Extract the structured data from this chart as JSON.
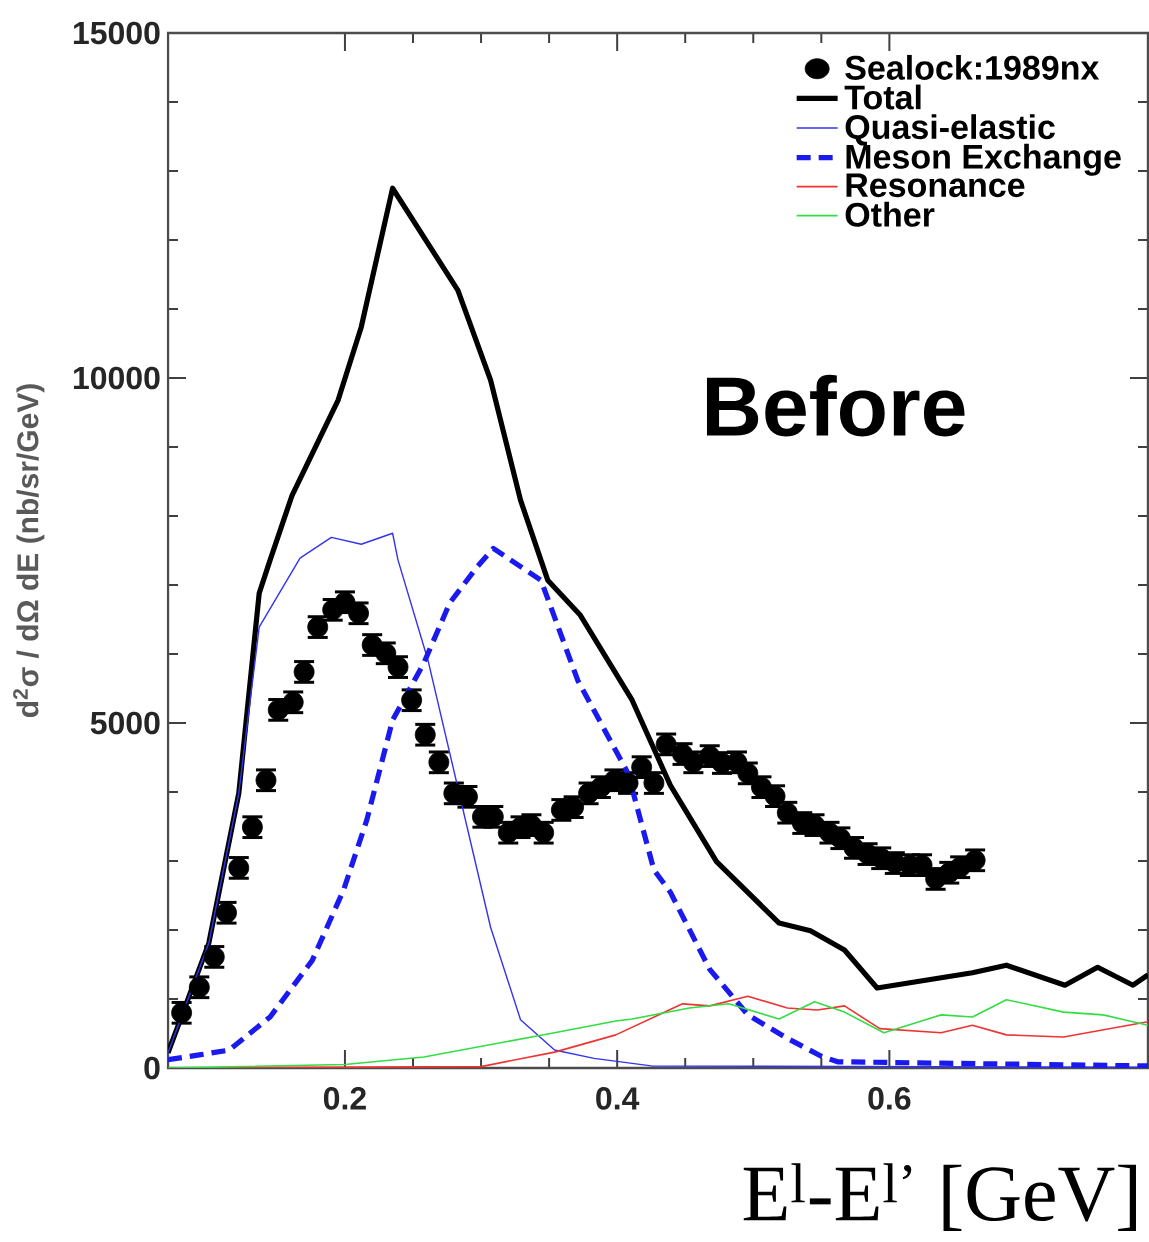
{
  "chart_data": {
    "type": "line",
    "xlabel": "E$^{l}$-E$^{l’}$ [GeV]",
    "ylabel": "d$^{2}$σ / dΩ dE (nb/sr/GeV)",
    "annotations": [
      "Before"
    ],
    "xlim": [
      0.07,
      0.79
    ],
    "ylim": [
      0,
      15000
    ],
    "xticks": [
      0.2,
      0.4,
      0.6
    ],
    "yticks": [
      0,
      5000,
      10000,
      15000
    ],
    "legend": "top right",
    "series": [
      {
        "name": "Sealock:1989nx",
        "type": "scatter",
        "marker": "circle",
        "color": "#000000",
        "x": [
          0.08,
          0.093,
          0.104,
          0.113,
          0.122,
          0.132,
          0.142,
          0.151,
          0.162,
          0.17,
          0.18,
          0.191,
          0.2,
          0.21,
          0.22,
          0.23,
          0.239,
          0.249,
          0.259,
          0.269,
          0.28,
          0.29,
          0.301,
          0.309,
          0.32,
          0.329,
          0.337,
          0.346,
          0.359,
          0.368,
          0.379,
          0.388,
          0.398,
          0.408,
          0.418,
          0.427,
          0.436,
          0.448,
          0.456,
          0.468,
          0.477,
          0.488,
          0.496,
          0.506,
          0.516,
          0.525,
          0.536,
          0.545,
          0.556,
          0.564,
          0.574,
          0.584,
          0.594,
          0.604,
          0.615,
          0.624,
          0.634,
          0.644,
          0.652,
          0.663
        ],
        "values": [
          800,
          1170,
          1610,
          2250,
          2900,
          3490,
          4170,
          5190,
          5300,
          5740,
          6390,
          6640,
          6750,
          6590,
          6130,
          6010,
          5810,
          5330,
          4830,
          4430,
          3980,
          3930,
          3640,
          3640,
          3410,
          3490,
          3520,
          3410,
          3740,
          3780,
          3980,
          4070,
          4170,
          4130,
          4360,
          4130,
          4690,
          4550,
          4430,
          4520,
          4420,
          4430,
          4270,
          4070,
          3940,
          3700,
          3550,
          3520,
          3410,
          3330,
          3190,
          3100,
          3040,
          2970,
          2940,
          2940,
          2740,
          2830,
          2910,
          3010
        ],
        "errors": [
          150,
          150,
          150,
          150,
          150,
          150,
          150,
          150,
          150,
          150,
          150,
          150,
          150,
          150,
          150,
          150,
          150,
          150,
          150,
          150,
          150,
          150,
          150,
          150,
          150,
          150,
          150,
          150,
          150,
          150,
          150,
          150,
          150,
          150,
          150,
          150,
          150,
          150,
          150,
          150,
          150,
          150,
          150,
          150,
          150,
          150,
          150,
          150,
          150,
          150,
          150,
          150,
          150,
          150,
          150,
          150,
          150,
          150,
          150,
          150
        ]
      },
      {
        "name": "Total",
        "type": "line",
        "line_style": "solid",
        "color": "#000000",
        "x": [
          0.07,
          0.1,
          0.122,
          0.137,
          0.145,
          0.161,
          0.195,
          0.212,
          0.235,
          0.283,
          0.307,
          0.329,
          0.349,
          0.373,
          0.411,
          0.439,
          0.473,
          0.519,
          0.542,
          0.567,
          0.591,
          0.661,
          0.686,
          0.729,
          0.753,
          0.779,
          0.79
        ],
        "values": [
          220,
          1810,
          3980,
          6880,
          7360,
          8290,
          9680,
          10740,
          12750,
          11270,
          9970,
          8230,
          7070,
          6560,
          5330,
          4100,
          2990,
          2100,
          1990,
          1710,
          1160,
          1380,
          1490,
          1200,
          1460,
          1200,
          1350
        ]
      },
      {
        "name": "Quasi-elastic",
        "type": "line",
        "line_style": "solid",
        "color": "#3333ee",
        "x": [
          0.07,
          0.1,
          0.122,
          0.137,
          0.167,
          0.19,
          0.212,
          0.235,
          0.239,
          0.261,
          0.307,
          0.329,
          0.354,
          0.383,
          0.425,
          0.79
        ],
        "values": [
          220,
          1810,
          3980,
          6390,
          7390,
          7690,
          7590,
          7750,
          7360,
          5910,
          2040,
          700,
          260,
          140,
          30,
          10
        ]
      },
      {
        "name": "Meson Exchange",
        "type": "line",
        "line_style": "dashed",
        "color": "#1a1aee",
        "x": [
          0.07,
          0.093,
          0.115,
          0.145,
          0.176,
          0.199,
          0.216,
          0.235,
          0.258,
          0.277,
          0.297,
          0.309,
          0.344,
          0.371,
          0.408,
          0.427,
          0.439,
          0.468,
          0.496,
          0.525,
          0.55,
          0.562,
          0.79
        ],
        "values": [
          120,
          190,
          260,
          740,
          1560,
          2580,
          3590,
          5040,
          5870,
          6740,
          7260,
          7530,
          7070,
          5620,
          4270,
          2870,
          2550,
          1430,
          770,
          430,
          170,
          90,
          30
        ]
      },
      {
        "name": "Resonance",
        "type": "line",
        "line_style": "solid",
        "color": "#ee3333",
        "x": [
          0.07,
          0.3,
          0.354,
          0.399,
          0.448,
          0.468,
          0.496,
          0.525,
          0.547,
          0.567,
          0.593,
          0.638,
          0.661,
          0.686,
          0.728,
          0.79
        ],
        "values": [
          0,
          20,
          230,
          480,
          930,
          900,
          1040,
          870,
          840,
          900,
          570,
          510,
          620,
          480,
          450,
          670
        ]
      },
      {
        "name": "Other",
        "type": "line",
        "line_style": "solid",
        "color": "#33dd44",
        "x": [
          0.07,
          0.2,
          0.258,
          0.354,
          0.399,
          0.411,
          0.453,
          0.482,
          0.519,
          0.545,
          0.567,
          0.596,
          0.638,
          0.661,
          0.686,
          0.728,
          0.757,
          0.79
        ],
        "values": [
          0,
          50,
          160,
          510,
          680,
          710,
          870,
          930,
          710,
          960,
          810,
          510,
          770,
          740,
          990,
          810,
          770,
          620
        ]
      }
    ]
  }
}
